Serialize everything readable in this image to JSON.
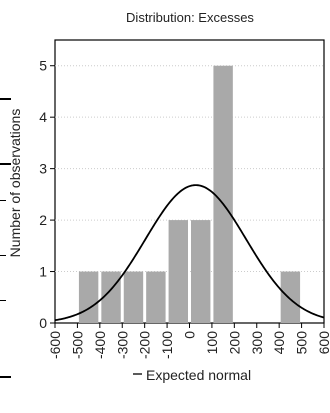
{
  "chart_data": {
    "type": "bar",
    "title": "Distribution: Excesses",
    "xlabel": "",
    "ylabel": "Number of observations",
    "xlim": [
      -600,
      600
    ],
    "ylim": [
      0,
      5.5
    ],
    "x_ticks": [
      "-600",
      "-500",
      "-400",
      "-300",
      "-200",
      "-100",
      "0",
      "100",
      "200",
      "300",
      "400",
      "500",
      "600"
    ],
    "y_ticks": [
      "0",
      "1",
      "2",
      "3",
      "4",
      "5"
    ],
    "bins": [
      {
        "from": -500,
        "to": -400,
        "count": 1
      },
      {
        "from": -400,
        "to": -300,
        "count": 1
      },
      {
        "from": -300,
        "to": -200,
        "count": 1
      },
      {
        "from": -200,
        "to": -100,
        "count": 1
      },
      {
        "from": -100,
        "to": 0,
        "count": 2
      },
      {
        "from": 0,
        "to": 100,
        "count": 2
      },
      {
        "from": 100,
        "to": 200,
        "count": 5
      },
      {
        "from": 200,
        "to": 300,
        "count": 0
      },
      {
        "from": 300,
        "to": 400,
        "count": 0
      },
      {
        "from": 400,
        "to": 500,
        "count": 1
      }
    ],
    "normal_curve": {
      "mean": 28,
      "sd": 225,
      "peak": 2.68
    },
    "legend": {
      "label": "Expected normal",
      "placement": "bottom"
    },
    "grid": true,
    "colors": {
      "bar": "#a9a9a9",
      "curve": "#000000",
      "axis": "#000000",
      "grid": "#cccccc"
    }
  }
}
